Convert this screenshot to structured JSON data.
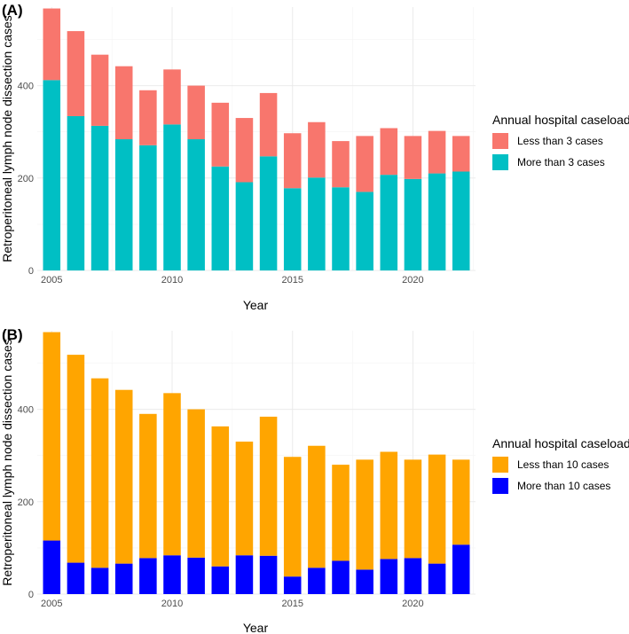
{
  "chart_data": [
    {
      "panel": "(A)",
      "type": "bar",
      "stacked": true,
      "xlabel": "Year",
      "ylabel": "Retroperitoneal lymph node dissection cases",
      "x": [
        2005,
        2006,
        2007,
        2008,
        2009,
        2010,
        2011,
        2012,
        2013,
        2014,
        2015,
        2016,
        2017,
        2018,
        2019,
        2020,
        2021,
        2022
      ],
      "xlim": [
        2004.4,
        2022.6
      ],
      "xticks": [
        2005,
        2010,
        2015,
        2020
      ],
      "ylim": [
        0,
        570
      ],
      "yticks": [
        0,
        200,
        400
      ],
      "grid": true,
      "legend": {
        "title": "Annual hospital caseload",
        "position": "right"
      },
      "series": [
        {
          "name": "More than 3 cases",
          "color": "#00BFC4",
          "values": [
            412,
            334,
            313,
            284,
            271,
            316,
            284,
            225,
            191,
            247,
            178,
            201,
            180,
            170,
            207,
            198,
            210,
            214
          ]
        },
        {
          "name": "Less than 3 cases",
          "color": "#F8766D",
          "values": [
            155,
            184,
            154,
            158,
            119,
            119,
            116,
            138,
            139,
            137,
            119,
            120,
            100,
            121,
            101,
            93,
            92,
            77
          ]
        }
      ]
    },
    {
      "panel": "(B)",
      "type": "bar",
      "stacked": true,
      "xlabel": "Year",
      "ylabel": "Retroperitoneal lymph node dissection cases",
      "x": [
        2005,
        2006,
        2007,
        2008,
        2009,
        2010,
        2011,
        2012,
        2013,
        2014,
        2015,
        2016,
        2017,
        2018,
        2019,
        2020,
        2021,
        2022
      ],
      "xlim": [
        2004.4,
        2022.6
      ],
      "xticks": [
        2005,
        2010,
        2015,
        2020
      ],
      "ylim": [
        0,
        570
      ],
      "yticks": [
        0,
        200,
        400
      ],
      "grid": true,
      "legend": {
        "title": "Annual hospital caseload",
        "position": "right"
      },
      "series": [
        {
          "name": "More than 10 cases",
          "color": "#0000FF",
          "values": [
            116,
            68,
            57,
            66,
            78,
            84,
            79,
            60,
            84,
            83,
            38,
            57,
            72,
            53,
            76,
            78,
            66,
            107
          ]
        },
        {
          "name": "Less than 10 cases",
          "color": "#FFA500",
          "values": [
            451,
            450,
            410,
            376,
            312,
            351,
            321,
            303,
            246,
            301,
            259,
            264,
            208,
            238,
            232,
            213,
            236,
            184
          ]
        }
      ]
    }
  ]
}
